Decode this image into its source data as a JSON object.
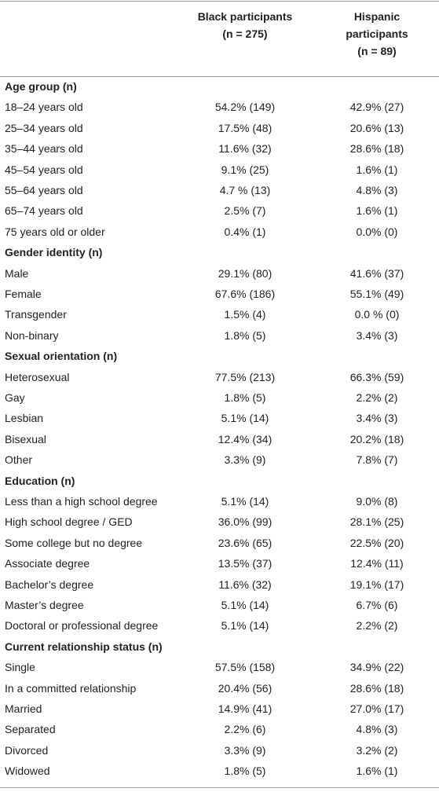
{
  "header": {
    "columns": [
      {
        "lines": [
          "Black participants",
          "(n = 275)"
        ]
      },
      {
        "lines": [
          "Hispanic",
          "participants",
          "(n = 89)"
        ]
      }
    ]
  },
  "sections": [
    {
      "title": "Age group (n)",
      "rows": [
        [
          "18–24 years old",
          "54.2% (149)",
          "42.9% (27)"
        ],
        [
          "25–34 years old",
          "17.5% (48)",
          "20.6% (13)"
        ],
        [
          "35–44 years old",
          "11.6% (32)",
          "28.6% (18)"
        ],
        [
          "45–54 years old",
          "9.1% (25)",
          "1.6% (1)"
        ],
        [
          "55–64 years old",
          "4.7 % (13)",
          "4.8% (3)"
        ],
        [
          "65–74 years old",
          "2.5% (7)",
          "1.6% (1)"
        ],
        [
          "75 years old or older",
          "0.4% (1)",
          "0.0% (0)"
        ]
      ]
    },
    {
      "title": "Gender identity (n)",
      "rows": [
        [
          "Male",
          "29.1% (80)",
          "41.6% (37)"
        ],
        [
          "Female",
          "67.6% (186)",
          "55.1% (49)"
        ],
        [
          "Transgender",
          "1.5% (4)",
          "0.0 % (0)"
        ],
        [
          "Non-binary",
          "1.8% (5)",
          "3.4% (3)"
        ]
      ]
    },
    {
      "title": "Sexual orientation (n)",
      "rows": [
        [
          "Heterosexual",
          "77.5% (213)",
          "66.3% (59)"
        ],
        [
          "Gay",
          "1.8% (5)",
          "2.2% (2)"
        ],
        [
          "Lesbian",
          "5.1% (14)",
          "3.4% (3)"
        ],
        [
          "Bisexual",
          "12.4% (34)",
          "20.2% (18)"
        ],
        [
          "Other",
          "3.3% (9)",
          "7.8% (7)"
        ]
      ]
    },
    {
      "title": "Education (n)",
      "rows": [
        [
          "Less than a high school degree",
          "5.1% (14)",
          "9.0% (8)"
        ],
        [
          "High school degree / GED",
          "36.0% (99)",
          "28.1% (25)"
        ],
        [
          "Some college but no degree",
          "23.6% (65)",
          "22.5% (20)"
        ],
        [
          "Associate degree",
          "13.5% (37)",
          "12.4% (11)"
        ],
        [
          "Bachelor’s degree",
          "11.6% (32)",
          "19.1% (17)"
        ],
        [
          "Master’s degree",
          "5.1% (14)",
          "6.7% (6)"
        ],
        [
          "Doctoral or professional degree",
          "5.1% (14)",
          "2.2% (2)"
        ]
      ]
    },
    {
      "title": "Current relationship status (n)",
      "rows": [
        [
          "Single",
          "57.5% (158)",
          "34.9% (22)"
        ],
        [
          "In a committed relationship",
          "20.4% (56)",
          "28.6% (18)"
        ],
        [
          "Married",
          "14.9% (41)",
          "27.0% (17)"
        ],
        [
          "Separated",
          "2.2% (6)",
          "4.8% (3)"
        ],
        [
          "Divorced",
          "3.3% (9)",
          "3.2% (2)"
        ],
        [
          "Widowed",
          "1.8% (5)",
          "1.6% (1)"
        ]
      ]
    }
  ]
}
